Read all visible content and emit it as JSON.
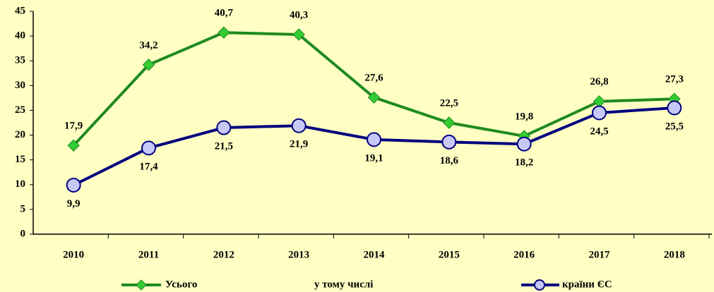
{
  "chart_data": {
    "type": "line",
    "categories": [
      "2010",
      "2011",
      "2012",
      "2013",
      "2014",
      "2015",
      "2016",
      "2017",
      "2018"
    ],
    "series": [
      {
        "name": "Усього",
        "color": "#1f8a1f",
        "marker_color": "#33cc33",
        "marker": "diamond",
        "values": [
          17.9,
          34.2,
          40.7,
          40.3,
          27.6,
          22.5,
          19.8,
          26.8,
          27.3
        ],
        "value_labels": [
          "17,9",
          "34,2",
          "40,7",
          "40,3",
          "27,6",
          "22,5",
          "19,8",
          "26,8",
          "27,3"
        ]
      },
      {
        "name": "країни ЄС",
        "color": "#000080",
        "marker_color": "#c8c8f8",
        "marker": "circle",
        "values": [
          9.9,
          17.4,
          21.5,
          21.9,
          19.1,
          18.6,
          18.2,
          24.5,
          25.5
        ],
        "value_labels": [
          "9,9",
          "17,4",
          "21,5",
          "21,9",
          "19,1",
          "18,6",
          "18,2",
          "24,5",
          "25,5"
        ]
      }
    ],
    "legend_text": "у тому числі",
    "ylim": [
      0,
      45
    ],
    "yticks": [
      0,
      5,
      10,
      15,
      20,
      25,
      30,
      35,
      40,
      45
    ],
    "grid": false
  }
}
